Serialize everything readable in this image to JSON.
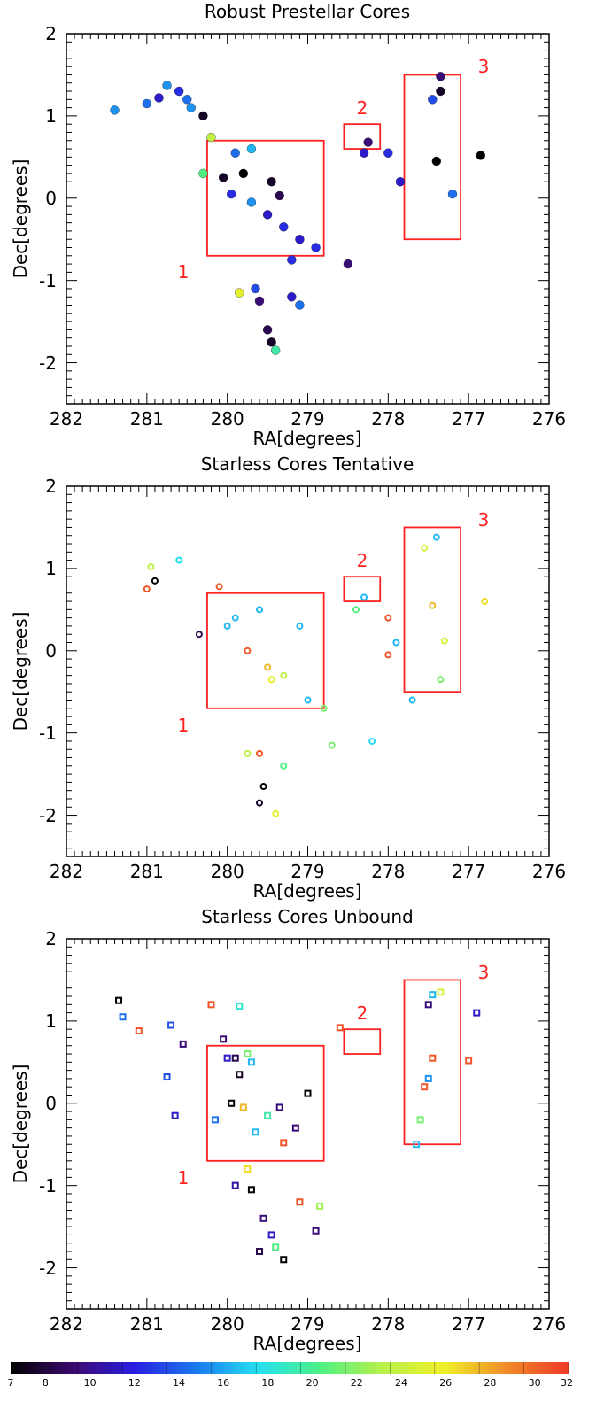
{
  "colors": {
    "region": "#ff2020",
    "colormap_stops": [
      "#000000",
      "#3a0a6e",
      "#2a1ee0",
      "#1b7af0",
      "#25e0f0",
      "#4ef085",
      "#b8f04a",
      "#f0f02a",
      "#f08a28",
      "#f03a28"
    ]
  },
  "chart_data": [
    {
      "type": "scatter",
      "title": "Robust Prestellar Cores",
      "xlabel": "RA[degrees]",
      "ylabel": "Dec[degrees]",
      "xlim": [
        282,
        276
      ],
      "ylim": [
        -2.5,
        2
      ],
      "x_ticks": [
        "282",
        "281",
        "280",
        "279",
        "278",
        "277",
        "276"
      ],
      "y_ticks": [
        "2",
        "1",
        "0",
        "-1",
        "-2"
      ],
      "marker": "circle",
      "regions": [
        {
          "label": "1",
          "ra": [
            280.25,
            278.8
          ],
          "dec": [
            -0.7,
            0.7
          ]
        },
        {
          "label": "2",
          "ra": [
            278.55,
            278.1
          ],
          "dec": [
            0.6,
            0.9
          ]
        },
        {
          "label": "3",
          "ra": [
            277.8,
            277.1
          ],
          "dec": [
            -0.5,
            1.5
          ]
        }
      ],
      "points": [
        {
          "ra": 281.4,
          "dec": 1.07,
          "value": 16
        },
        {
          "ra": 281.0,
          "dec": 1.15,
          "value": 15
        },
        {
          "ra": 280.85,
          "dec": 1.22,
          "value": 12
        },
        {
          "ra": 280.75,
          "dec": 1.37,
          "value": 16
        },
        {
          "ra": 280.6,
          "dec": 1.3,
          "value": 13
        },
        {
          "ra": 280.5,
          "dec": 1.2,
          "value": 15
        },
        {
          "ra": 280.45,
          "dec": 1.1,
          "value": 16
        },
        {
          "ra": 280.3,
          "dec": 1.0,
          "value": 8
        },
        {
          "ra": 280.2,
          "dec": 0.74,
          "value": 24
        },
        {
          "ra": 280.3,
          "dec": 0.3,
          "value": 21
        },
        {
          "ra": 280.05,
          "dec": 0.25,
          "value": 8
        },
        {
          "ra": 279.8,
          "dec": 0.3,
          "value": 7
        },
        {
          "ra": 279.9,
          "dec": 0.55,
          "value": 15
        },
        {
          "ra": 279.7,
          "dec": 0.6,
          "value": 17
        },
        {
          "ra": 279.45,
          "dec": 0.2,
          "value": 8
        },
        {
          "ra": 279.35,
          "dec": 0.03,
          "value": 9
        },
        {
          "ra": 279.95,
          "dec": 0.05,
          "value": 13
        },
        {
          "ra": 279.7,
          "dec": -0.05,
          "value": 16
        },
        {
          "ra": 279.5,
          "dec": -0.2,
          "value": 12
        },
        {
          "ra": 279.3,
          "dec": -0.35,
          "value": 13
        },
        {
          "ra": 279.1,
          "dec": -0.5,
          "value": 12
        },
        {
          "ra": 278.9,
          "dec": -0.6,
          "value": 13
        },
        {
          "ra": 279.2,
          "dec": -0.75,
          "value": 13
        },
        {
          "ra": 278.5,
          "dec": -0.8,
          "value": 10
        },
        {
          "ra": 278.3,
          "dec": 0.55,
          "value": 12
        },
        {
          "ra": 278.25,
          "dec": 0.68,
          "value": 10
        },
        {
          "ra": 278.0,
          "dec": 0.55,
          "value": 13
        },
        {
          "ra": 277.85,
          "dec": 0.2,
          "value": 12
        },
        {
          "ra": 277.45,
          "dec": 1.2,
          "value": 14
        },
        {
          "ra": 277.35,
          "dec": 1.48,
          "value": 10
        },
        {
          "ra": 277.35,
          "dec": 1.3,
          "value": 8
        },
        {
          "ra": 277.4,
          "dec": 0.45,
          "value": 7
        },
        {
          "ra": 277.2,
          "dec": 0.05,
          "value": 15
        },
        {
          "ra": 276.85,
          "dec": 0.52,
          "value": 7
        },
        {
          "ra": 279.65,
          "dec": -1.1,
          "value": 14
        },
        {
          "ra": 279.85,
          "dec": -1.15,
          "value": 26
        },
        {
          "ra": 279.6,
          "dec": -1.25,
          "value": 10
        },
        {
          "ra": 279.2,
          "dec": -1.2,
          "value": 12
        },
        {
          "ra": 279.1,
          "dec": -1.3,
          "value": 15
        },
        {
          "ra": 279.5,
          "dec": -1.6,
          "value": 9
        },
        {
          "ra": 279.45,
          "dec": -1.75,
          "value": 8
        },
        {
          "ra": 279.4,
          "dec": -1.85,
          "value": 20
        }
      ]
    },
    {
      "type": "scatter",
      "title": "Starless Cores Tentative",
      "xlabel": "RA[degrees]",
      "ylabel": "Dec[degrees]",
      "xlim": [
        282,
        276
      ],
      "ylim": [
        -2.5,
        2
      ],
      "x_ticks": [
        "282",
        "281",
        "280",
        "279",
        "278",
        "277",
        "276"
      ],
      "y_ticks": [
        "2",
        "1",
        "0",
        "-1",
        "-2"
      ],
      "marker": "ring",
      "regions": [
        {
          "label": "1",
          "ra": [
            280.25,
            278.8
          ],
          "dec": [
            -0.7,
            0.7
          ]
        },
        {
          "label": "2",
          "ra": [
            278.55,
            278.1
          ],
          "dec": [
            0.6,
            0.9
          ]
        },
        {
          "label": "3",
          "ra": [
            277.8,
            277.1
          ],
          "dec": [
            -0.5,
            1.5
          ]
        }
      ],
      "points": [
        {
          "ra": 281.0,
          "dec": 0.75,
          "value": 31
        },
        {
          "ra": 280.9,
          "dec": 0.85,
          "value": 7
        },
        {
          "ra": 280.95,
          "dec": 1.02,
          "value": 24
        },
        {
          "ra": 280.6,
          "dec": 1.1,
          "value": 18
        },
        {
          "ra": 280.35,
          "dec": 0.2,
          "value": 9
        },
        {
          "ra": 280.1,
          "dec": 0.78,
          "value": 31
        },
        {
          "ra": 280.0,
          "dec": 0.3,
          "value": 17
        },
        {
          "ra": 279.9,
          "dec": 0.4,
          "value": 17
        },
        {
          "ra": 279.75,
          "dec": 0.0,
          "value": 31
        },
        {
          "ra": 279.6,
          "dec": 0.5,
          "value": 17
        },
        {
          "ra": 279.45,
          "dec": -0.35,
          "value": 26
        },
        {
          "ra": 279.5,
          "dec": -0.2,
          "value": 28
        },
        {
          "ra": 279.3,
          "dec": -0.3,
          "value": 24
        },
        {
          "ra": 279.1,
          "dec": 0.3,
          "value": 17
        },
        {
          "ra": 279.0,
          "dec": -0.6,
          "value": 17
        },
        {
          "ra": 278.8,
          "dec": -0.7,
          "value": 22
        },
        {
          "ra": 278.4,
          "dec": 0.5,
          "value": 21
        },
        {
          "ra": 278.3,
          "dec": 0.65,
          "value": 17
        },
        {
          "ra": 278.0,
          "dec": 0.4,
          "value": 31
        },
        {
          "ra": 278.0,
          "dec": -0.05,
          "value": 31
        },
        {
          "ra": 277.9,
          "dec": 0.1,
          "value": 17
        },
        {
          "ra": 277.55,
          "dec": 1.25,
          "value": 25
        },
        {
          "ra": 277.4,
          "dec": 1.38,
          "value": 17
        },
        {
          "ra": 277.45,
          "dec": 0.55,
          "value": 28
        },
        {
          "ra": 277.3,
          "dec": 0.12,
          "value": 25
        },
        {
          "ra": 277.35,
          "dec": -0.35,
          "value": 22
        },
        {
          "ra": 276.8,
          "dec": 0.6,
          "value": 27
        },
        {
          "ra": 277.7,
          "dec": -0.6,
          "value": 17
        },
        {
          "ra": 279.75,
          "dec": -1.25,
          "value": 24
        },
        {
          "ra": 279.6,
          "dec": -1.25,
          "value": 31
        },
        {
          "ra": 279.55,
          "dec": -1.65,
          "value": 7
        },
        {
          "ra": 279.6,
          "dec": -1.85,
          "value": 8
        },
        {
          "ra": 279.4,
          "dec": -1.98,
          "value": 26
        },
        {
          "ra": 279.3,
          "dec": -1.4,
          "value": 21
        },
        {
          "ra": 278.7,
          "dec": -1.15,
          "value": 22
        },
        {
          "ra": 278.2,
          "dec": -1.1,
          "value": 18
        }
      ]
    },
    {
      "type": "scatter",
      "title": "Starless Cores Unbound",
      "xlabel": "RA[degrees]",
      "ylabel": "Dec[degrees]",
      "xlim": [
        282,
        276
      ],
      "ylim": [
        -2.5,
        2
      ],
      "x_ticks": [
        "282",
        "281",
        "280",
        "279",
        "278",
        "277",
        "276"
      ],
      "y_ticks": [
        "2",
        "1",
        "0",
        "-1",
        "-2"
      ],
      "marker": "square",
      "regions": [
        {
          "label": "1",
          "ra": [
            280.25,
            278.8
          ],
          "dec": [
            -0.7,
            0.7
          ]
        },
        {
          "label": "2",
          "ra": [
            278.55,
            278.1
          ],
          "dec": [
            0.6,
            0.9
          ]
        },
        {
          "label": "3",
          "ra": [
            277.8,
            277.1
          ],
          "dec": [
            -0.5,
            1.5
          ]
        }
      ],
      "points": [
        {
          "ra": 281.35,
          "dec": 1.25,
          "value": 7
        },
        {
          "ra": 281.3,
          "dec": 1.05,
          "value": 15
        },
        {
          "ra": 281.1,
          "dec": 0.88,
          "value": 31
        },
        {
          "ra": 280.7,
          "dec": 0.95,
          "value": 14
        },
        {
          "ra": 280.55,
          "dec": 0.72,
          "value": 10
        },
        {
          "ra": 280.75,
          "dec": 0.32,
          "value": 14
        },
        {
          "ra": 280.65,
          "dec": -0.15,
          "value": 12
        },
        {
          "ra": 280.2,
          "dec": 1.2,
          "value": 31
        },
        {
          "ra": 280.05,
          "dec": 0.78,
          "value": 10
        },
        {
          "ra": 279.85,
          "dec": 1.18,
          "value": 19
        },
        {
          "ra": 280.0,
          "dec": 0.55,
          "value": 12
        },
        {
          "ra": 279.9,
          "dec": 0.55,
          "value": 9
        },
        {
          "ra": 279.7,
          "dec": 0.5,
          "value": 17
        },
        {
          "ra": 279.85,
          "dec": 0.35,
          "value": 8
        },
        {
          "ra": 279.75,
          "dec": 0.6,
          "value": 22
        },
        {
          "ra": 279.95,
          "dec": 0.0,
          "value": 7
        },
        {
          "ra": 279.8,
          "dec": -0.05,
          "value": 28
        },
        {
          "ra": 280.15,
          "dec": -0.2,
          "value": 15
        },
        {
          "ra": 279.65,
          "dec": -0.35,
          "value": 17
        },
        {
          "ra": 279.5,
          "dec": -0.15,
          "value": 20
        },
        {
          "ra": 279.35,
          "dec": -0.05,
          "value": 10
        },
        {
          "ra": 279.3,
          "dec": -0.48,
          "value": 31
        },
        {
          "ra": 279.15,
          "dec": -0.3,
          "value": 10
        },
        {
          "ra": 279.0,
          "dec": 0.12,
          "value": 7
        },
        {
          "ra": 278.6,
          "dec": 0.92,
          "value": 31
        },
        {
          "ra": 277.65,
          "dec": -0.5,
          "value": 17
        },
        {
          "ra": 277.6,
          "dec": -0.2,
          "value": 22
        },
        {
          "ra": 277.55,
          "dec": 0.2,
          "value": 31
        },
        {
          "ra": 277.45,
          "dec": 0.55,
          "value": 31
        },
        {
          "ra": 277.5,
          "dec": 0.3,
          "value": 16
        },
        {
          "ra": 277.5,
          "dec": 1.2,
          "value": 10
        },
        {
          "ra": 277.45,
          "dec": 1.32,
          "value": 17
        },
        {
          "ra": 277.35,
          "dec": 1.35,
          "value": 25
        },
        {
          "ra": 277.0,
          "dec": 0.52,
          "value": 31
        },
        {
          "ra": 276.9,
          "dec": 1.1,
          "value": 12
        },
        {
          "ra": 279.75,
          "dec": -0.8,
          "value": 27
        },
        {
          "ra": 279.9,
          "dec": -1.0,
          "value": 11
        },
        {
          "ra": 279.7,
          "dec": -1.05,
          "value": 7
        },
        {
          "ra": 279.55,
          "dec": -1.4,
          "value": 10
        },
        {
          "ra": 279.45,
          "dec": -1.6,
          "value": 12
        },
        {
          "ra": 279.6,
          "dec": -1.8,
          "value": 9
        },
        {
          "ra": 279.4,
          "dec": -1.75,
          "value": 21
        },
        {
          "ra": 279.3,
          "dec": -1.9,
          "value": 7
        },
        {
          "ra": 279.1,
          "dec": -1.2,
          "value": 31
        },
        {
          "ra": 278.85,
          "dec": -1.25,
          "value": 23
        },
        {
          "ra": 278.9,
          "dec": -1.55,
          "value": 10
        }
      ]
    }
  ],
  "colorbar": {
    "ticks": [
      "7",
      "8",
      "10",
      "12",
      "14",
      "16",
      "18",
      "20",
      "22",
      "24",
      "26",
      "28",
      "30",
      "32"
    ]
  }
}
